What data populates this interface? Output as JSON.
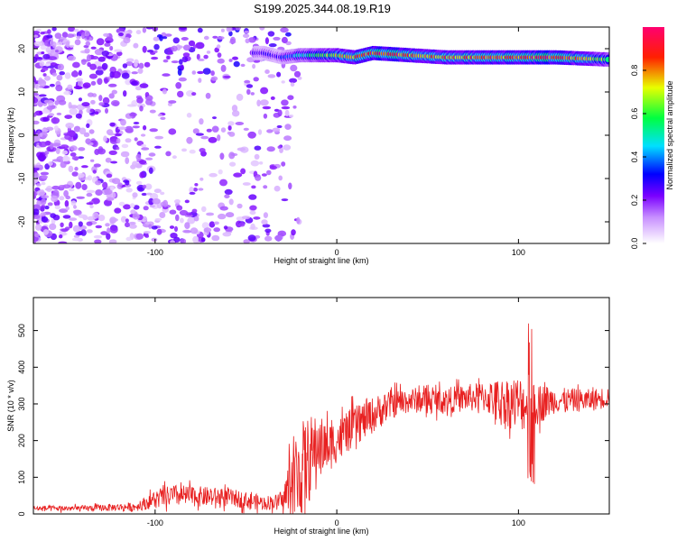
{
  "page_title": "S199.2025.344.08.19.R19",
  "chart_data": [
    {
      "type": "heatmap",
      "title": "",
      "xlabel": "Height of straight line (km)",
      "ylabel": "Frequency (Hz)",
      "xlim": [
        -167,
        150
      ],
      "ylim": [
        -25,
        25
      ],
      "xticks": [
        -100,
        0,
        100
      ],
      "yticks": [
        -20,
        -10,
        0,
        10,
        20
      ],
      "grid": false,
      "colorbar": {
        "label": "Normalized spectral amplitude",
        "range": [
          0,
          1
        ],
        "ticks": [
          "0.0",
          "0.2",
          "0.4",
          "0.6",
          "0.8"
        ],
        "colors": [
          "#ffffff",
          "#8000ff",
          "#0000ff",
          "#00ffff",
          "#00ff00",
          "#ffff00",
          "#ff0000",
          "#ff0080"
        ]
      },
      "ridge": {
        "x": [
          -40,
          -30,
          -20,
          -10,
          0,
          10,
          20,
          40,
          60,
          80,
          100,
          120,
          150
        ],
        "y": [
          19,
          18,
          18.5,
          18.5,
          18.5,
          18,
          19,
          18.5,
          18,
          18,
          18,
          18,
          17.5
        ],
        "amplitude": [
          0.25,
          0.3,
          0.45,
          0.6,
          0.7,
          0.75,
          0.9,
          0.8,
          0.75,
          0.8,
          0.85,
          0.9,
          0.6
        ]
      },
      "noise_amplitude": 0.15
    },
    {
      "type": "line",
      "title": "",
      "xlabel": "Height of straight line (km)",
      "ylabel": "SNR (10 * v/v)",
      "xlim": [
        -167,
        150
      ],
      "ylim": [
        0,
        590
      ],
      "xticks": [
        -100,
        0,
        100
      ],
      "yticks": [
        0,
        100,
        200,
        300,
        400,
        500
      ],
      "grid": false,
      "color": "#e82020",
      "series": [
        {
          "x": [
            -167,
            -140,
            -110,
            -100,
            -90,
            -60,
            -40,
            -30,
            -25,
            -20,
            -15,
            -10,
            -5,
            0,
            10,
            20,
            30,
            40,
            60,
            80,
            100,
            110,
            120,
            140,
            150
          ],
          "y": [
            15,
            15,
            20,
            40,
            50,
            45,
            30,
            35,
            80,
            120,
            150,
            190,
            180,
            200,
            240,
            270,
            300,
            310,
            310,
            320,
            300,
            300,
            310,
            310,
            320
          ],
          "noise": [
            8,
            8,
            12,
            25,
            30,
            25,
            20,
            20,
            120,
            130,
            120,
            80,
            70,
            60,
            55,
            50,
            40,
            35,
            35,
            40,
            80,
            60,
            35,
            30,
            30
          ]
        }
      ]
    }
  ]
}
